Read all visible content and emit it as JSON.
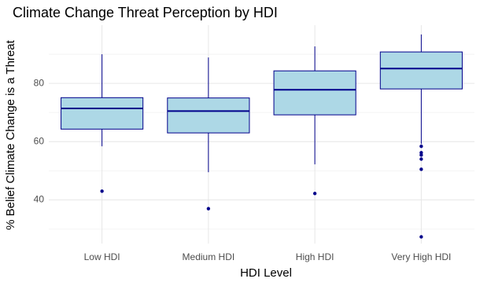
{
  "chart_data": {
    "type": "box",
    "title": "Climate Change Threat Perception by HDI",
    "x_label": "HDI Level",
    "y_label": "% Belief Climate Change is a Threat",
    "categories": [
      "Low HDI",
      "Medium HDI",
      "High HDI",
      "Very High HDI"
    ],
    "fill": "#add8e6",
    "color": "#00008b",
    "boxes": [
      {
        "whisker_low": 58.4,
        "q1": 64.3,
        "median": 71.4,
        "q3": 75.1,
        "whisker_high": 90,
        "outliers": [
          43
        ]
      },
      {
        "whisker_low": 49.5,
        "q1": 63,
        "median": 70.5,
        "q3": 75,
        "whisker_high": 88.9,
        "outliers": [
          37
        ]
      },
      {
        "whisker_low": 52.2,
        "q1": 69.2,
        "median": 77.8,
        "q3": 84.3,
        "whisker_high": 92.7,
        "outliers": [
          42.2
        ]
      },
      {
        "whisker_low": 59.2,
        "q1": 78.1,
        "median": 85.1,
        "q3": 90.8,
        "whisker_high": 96.8,
        "outliers": [
          58.4,
          56.2,
          55.4,
          54,
          50.5,
          27.3
        ]
      }
    ],
    "ylim": [
      25,
      100
    ],
    "yticks": [
      40,
      60,
      80
    ],
    "y_minor_ticks": [
      30,
      50,
      70,
      90
    ],
    "grid": true
  }
}
